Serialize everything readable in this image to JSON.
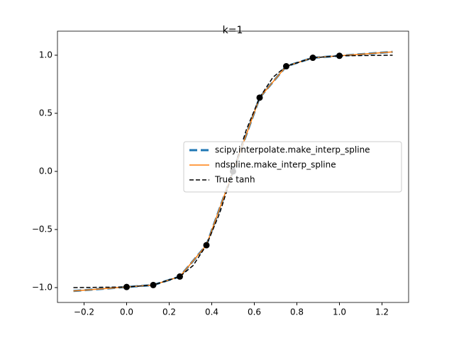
{
  "chart_data": {
    "type": "line",
    "title": "k=1",
    "xlim": [
      -0.325,
      1.325
    ],
    "ylim": [
      -1.128,
      1.207
    ],
    "xticks": [
      {
        "value": -0.2,
        "label": "−0.2"
      },
      {
        "value": 0,
        "label": "0.0"
      },
      0.2,
      0.4,
      0.6,
      0.8,
      {
        "value": 1,
        "label": "1.0"
      },
      1.2
    ],
    "yticks": [
      {
        "value": -1,
        "label": "−1.0"
      },
      {
        "value": -0.5,
        "label": "−0.5"
      },
      {
        "value": 0,
        "label": "0.0"
      },
      {
        "value": 0.5,
        "label": "0.5"
      },
      {
        "value": 1,
        "label": "1.0"
      }
    ],
    "legend": "center right",
    "series": [
      {
        "name": "scipy.interpolate.make_interp_spline",
        "color": "#1f77b4",
        "style": "dashed-thick",
        "x": [
          -0.25,
          0,
          0.125,
          0.25,
          0.375,
          0.5,
          0.625,
          0.75,
          0.875,
          1,
          1.25
        ],
        "values": [
          -1.029,
          -0.995,
          -0.978,
          -0.905,
          -0.635,
          0,
          0.635,
          0.905,
          0.978,
          0.995,
          1.029
        ]
      },
      {
        "name": "ndspline.make_interp_spline",
        "color": "#ff7f0e",
        "style": "solid",
        "x": [
          -0.25,
          0,
          0.125,
          0.25,
          0.375,
          0.5,
          0.625,
          0.75,
          0.875,
          1,
          1.25
        ],
        "values": [
          -1.029,
          -0.995,
          -0.978,
          -0.905,
          -0.635,
          0,
          0.635,
          0.905,
          0.978,
          0.995,
          1.029
        ]
      },
      {
        "name": "True tanh",
        "color": "#000000",
        "style": "dashed",
        "x": [
          -0.25,
          0,
          0.125,
          0.25,
          0.3125,
          0.375,
          0.4375,
          0.5,
          0.5625,
          0.625,
          0.6875,
          0.75,
          0.875,
          1,
          1.25
        ],
        "values": [
          -1.0,
          -0.995,
          -0.978,
          -0.905,
          -0.81,
          -0.635,
          -0.358,
          0,
          0.358,
          0.635,
          0.81,
          0.905,
          0.978,
          0.995,
          1.0
        ]
      }
    ],
    "points": {
      "color": "#000000",
      "x": [
        0,
        0.125,
        0.25,
        0.375,
        0.5,
        0.625,
        0.75,
        0.875,
        1
      ],
      "values": [
        -0.995,
        -0.978,
        -0.905,
        -0.635,
        0,
        0.635,
        0.905,
        0.978,
        0.995
      ]
    }
  }
}
